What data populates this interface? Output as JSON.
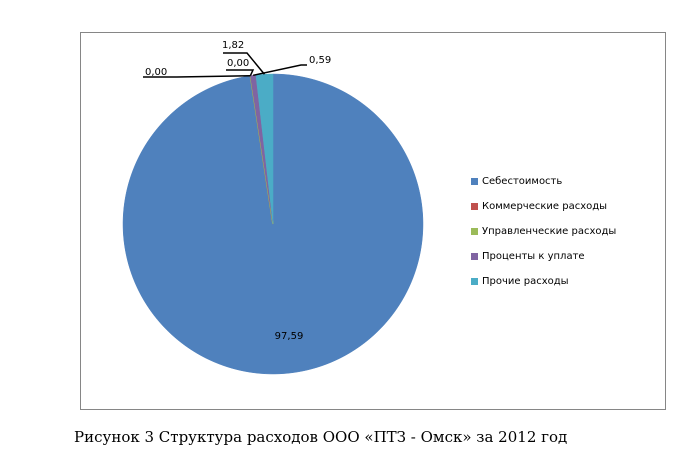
{
  "caption": "Рисунок 3 Структура расходов ООО «ПТЗ - Омск» за 2012 год",
  "chart_data": {
    "type": "pie",
    "categories": [
      "Себестоимость",
      "Коммерческие расходы",
      "Управленческие расходы",
      "Проценты к уплате",
      "Прочие расходы"
    ],
    "values": [
      97.59,
      0.0,
      0.0,
      0.59,
      1.82
    ],
    "value_labels": [
      "97,59",
      "0,00",
      "0,00",
      "0,59",
      "1,82"
    ],
    "colors": [
      "#4F81BD",
      "#C0504D",
      "#9BBB59",
      "#8064A2",
      "#4BACC6"
    ],
    "legend_position": "right",
    "start_angle_deg": 0,
    "direction": "clockwise"
  }
}
